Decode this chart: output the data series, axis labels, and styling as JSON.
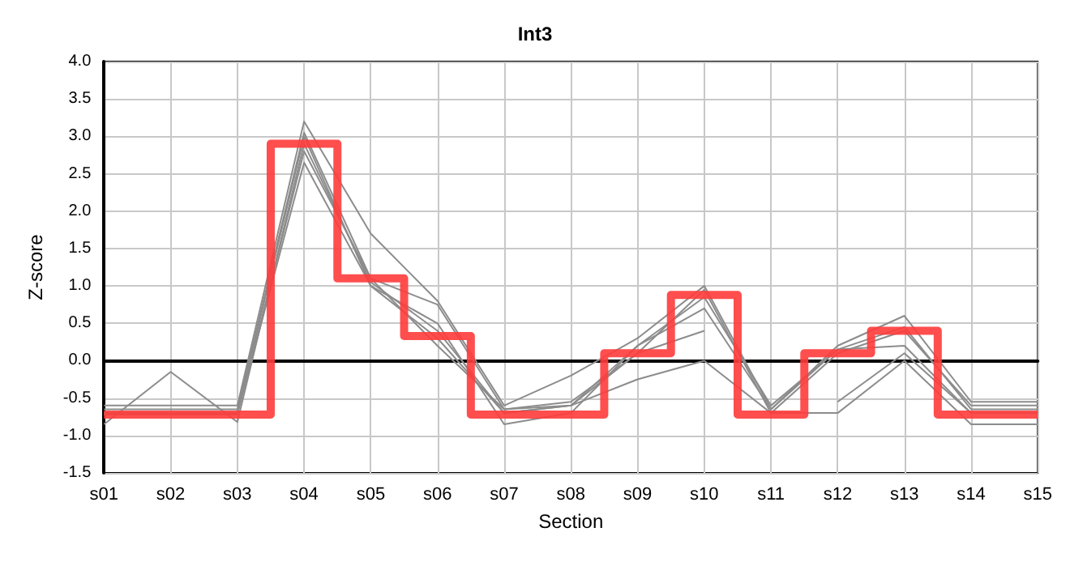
{
  "chart_data": {
    "type": "line",
    "title": "Int3",
    "xlabel": "Section",
    "ylabel": "Z-score",
    "categories": [
      "s01",
      "s02",
      "s03",
      "s04",
      "s05",
      "s06",
      "s07",
      "s08",
      "s09",
      "s10",
      "s11",
      "s12",
      "s13",
      "s14",
      "s15"
    ],
    "series": [
      {
        "color": "#8c8c8c",
        "values": [
          -0.6,
          -0.6,
          -0.6,
          3.2,
          1.7,
          0.8,
          -0.6,
          -0.2,
          0.3,
          1.0,
          -0.65,
          0.2,
          0.6,
          -0.55,
          -0.55
        ]
      },
      {
        "color": "#8c8c8c",
        "values": [
          -0.65,
          -0.65,
          -0.65,
          3.05,
          1.1,
          0.75,
          -0.65,
          -0.6,
          0.1,
          0.95,
          -0.7,
          0.1,
          0.4,
          -0.6,
          -0.6
        ]
      },
      {
        "color": "#8c8c8c",
        "values": [
          -0.7,
          -0.7,
          -0.7,
          3.0,
          1.0,
          0.5,
          -0.85,
          -0.7,
          0.2,
          0.85,
          -0.6,
          0.15,
          0.45,
          -0.65,
          -0.65
        ]
      },
      {
        "color": "#8c8c8c",
        "values": [
          -0.85,
          -0.15,
          -0.82,
          2.9,
          1.05,
          0.4,
          -0.7,
          -0.6,
          -0.25,
          0.0,
          -0.7,
          -0.7,
          0.0,
          -0.85,
          -0.85
        ]
      },
      {
        "color": "#8c8c8c",
        "values": [
          -0.7,
          -0.7,
          -0.7,
          2.65,
          1.0,
          0.3,
          -0.7,
          -0.6,
          0.2,
          0.7,
          -0.65,
          0.15,
          0.2,
          -0.7,
          -0.7
        ]
      },
      {
        "color": "#8c8c8c",
        "values": [
          -0.72,
          -0.72,
          -0.72,
          2.8,
          1.1,
          0.2,
          -0.65,
          -0.55,
          0.1,
          0.4,
          null,
          -0.55,
          0.1,
          -0.7,
          -0.7
        ]
      },
      {
        "type": "step",
        "color": "#ff3b3b",
        "values": [
          -0.72,
          -0.72,
          -0.72,
          2.9,
          1.1,
          0.33,
          -0.72,
          -0.72,
          0.1,
          0.88,
          -0.72,
          0.1,
          0.4,
          -0.72,
          -0.72
        ]
      }
    ],
    "ylim": [
      -1.5,
      4.0
    ],
    "yticks": [
      {
        "value": -1.5,
        "label": "-1.5"
      },
      {
        "value": -1,
        "label": "-1.0"
      },
      {
        "value": -0.5,
        "label": "-0.5"
      },
      {
        "value": 0,
        "label": "0.0"
      },
      {
        "value": 0.5,
        "label": "0.5"
      },
      {
        "value": 1,
        "label": "1.0"
      },
      {
        "value": 1.5,
        "label": "1.5"
      },
      {
        "value": 2,
        "label": "2.0"
      },
      {
        "value": 2.5,
        "label": "2.5"
      },
      {
        "value": 3,
        "label": "3.0"
      },
      {
        "value": 3.5,
        "label": "3.5"
      },
      {
        "value": 4,
        "label": "4.0"
      }
    ],
    "grid": true,
    "marker": "none",
    "line_style": "solid"
  }
}
